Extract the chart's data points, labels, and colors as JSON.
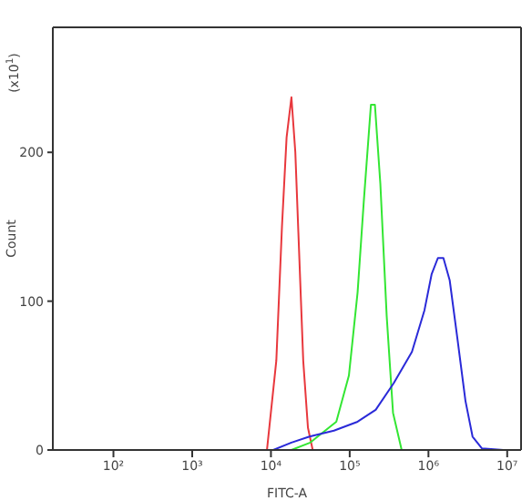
{
  "chart_data": {
    "type": "line",
    "xlabel": "FITC-A",
    "ylabel": "Count",
    "annotations": [
      "(x10$^{1}$)"
    ],
    "log": "x",
    "xlim": [
      17,
      15000000
    ],
    "xticks": [
      {
        "value": 100,
        "label": "10²"
      },
      {
        "value": 1000,
        "label": "10³"
      },
      {
        "value": 10000,
        "label": "10⁴"
      },
      {
        "value": 100000,
        "label": "10⁵"
      },
      {
        "value": 1000000,
        "label": "10⁶"
      },
      {
        "value": 10000000,
        "label": "10⁷"
      }
    ],
    "ylim": [
      0,
      284
    ],
    "yticks": [
      0,
      100,
      200
    ],
    "marker": "none",
    "line_style": "solid",
    "series": [
      {
        "color": "#e8383d",
        "x": [
          8900,
          11700,
          13800,
          15800,
          18200,
          20400,
          22900,
          25700,
          29500,
          33900
        ],
        "values": [
          0,
          60,
          150,
          210,
          237,
          200,
          130,
          60,
          15,
          0
        ]
      },
      {
        "color": "#33e633",
        "x": [
          18200,
          31600,
          67600,
          97700,
          126000,
          151000,
          186000,
          209000,
          245000,
          295000,
          355000,
          457000
        ],
        "values": [
          0,
          5,
          19,
          50,
          106,
          167,
          232,
          232,
          179,
          90,
          25,
          0
        ]
      },
      {
        "color": "#2a2ad8",
        "x": [
          10700,
          18200,
          30900,
          63100,
          126000,
          214000,
          363000,
          617000,
          891000,
          1096000,
          1318000,
          1549000,
          1862000,
          2344000,
          2951000,
          3631000,
          4786000,
          8913000
        ],
        "values": [
          0,
          5,
          9,
          13,
          19,
          27,
          45,
          66,
          94,
          118,
          129,
          129,
          114,
          74,
          33,
          9,
          1,
          0
        ]
      }
    ]
  }
}
